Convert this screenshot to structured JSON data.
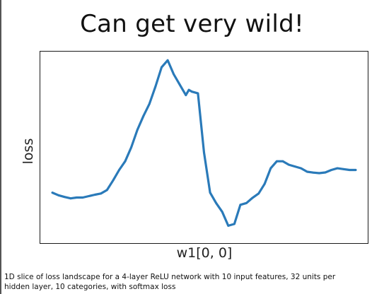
{
  "slide": {
    "title": "Can get very wild!",
    "caption": "1D slice of loss landscape for a 4-layer ReLU network with 10 input features, 32 units per hidden layer, 10 categories, with softmax loss"
  },
  "chart_data": {
    "type": "line",
    "xlabel": "w1[0, 0]",
    "ylabel": "loss",
    "grid": false,
    "line_color": "#2a7ab9",
    "x": [
      0,
      2,
      4,
      6,
      8,
      10,
      12,
      14,
      16,
      18,
      20,
      22,
      24,
      26,
      28,
      30,
      32,
      34,
      36,
      38,
      40,
      42,
      44,
      45,
      46,
      48,
      50,
      52,
      54,
      56,
      58,
      60,
      62,
      64,
      66,
      68,
      70,
      72,
      74,
      76,
      78,
      80,
      82,
      84,
      86,
      88,
      90,
      92,
      94,
      96,
      98,
      100
    ],
    "y": [
      0.24,
      0.225,
      0.215,
      0.207,
      0.212,
      0.212,
      0.22,
      0.228,
      0.235,
      0.255,
      0.31,
      0.37,
      0.42,
      0.5,
      0.6,
      0.68,
      0.75,
      0.85,
      0.96,
      1.0,
      0.92,
      0.86,
      0.8,
      0.83,
      0.82,
      0.81,
      0.47,
      0.24,
      0.18,
      0.13,
      0.05,
      0.06,
      0.17,
      0.18,
      0.21,
      0.235,
      0.29,
      0.38,
      0.42,
      0.42,
      0.4,
      0.39,
      0.38,
      0.36,
      0.355,
      0.352,
      0.356,
      0.37,
      0.38,
      0.375,
      0.37,
      0.37
    ],
    "xlim": [
      -4,
      104
    ],
    "ylim": [
      -0.05,
      1.05
    ]
  }
}
